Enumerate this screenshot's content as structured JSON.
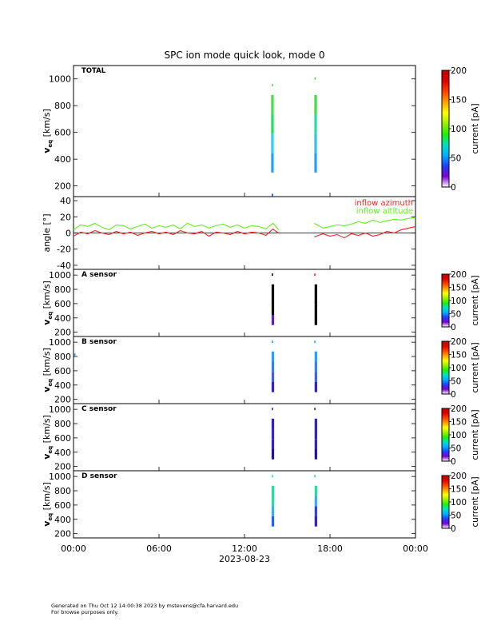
{
  "title": "SPC ion mode quick look, mode 0",
  "footer": {
    "line1": "Generated on Thu Oct 12 14:00:38 2023 by mstevens@cfa.harvard.edu",
    "line2": "For browse purposes only."
  },
  "colors": {
    "azimuth": "#ff2020",
    "altitude": "#66ee22",
    "colorbar": [
      "#ffffff",
      "#7b00d0",
      "#2040ff",
      "#00b0ff",
      "#00e0c0",
      "#20f000",
      "#a0f000",
      "#ffff00",
      "#ffa000",
      "#ff4000",
      "#e00000",
      "#c00000"
    ]
  },
  "chart_data": [
    {
      "type": "heatmap",
      "panel": "TOTAL",
      "panel_label": "TOTAL",
      "ylabel_main": "v",
      "ylabel_sub": "eq",
      "ylabel_unit": "[km/s]",
      "ylim": [
        120,
        1100
      ],
      "yticks": [
        200,
        400,
        600,
        800,
        1000
      ],
      "colorbar_label": "current  [pA]",
      "colorbar_range": [
        0,
        200
      ],
      "colorbar_ticks": [
        0,
        50,
        100,
        150,
        200
      ],
      "strips": [
        {
          "t_start": 13.87,
          "t_end": 14.05,
          "v_min": 300,
          "v_max": 880,
          "colors": [
            "#20a0ff",
            "#30d0f0",
            "#20e060",
            "#40e040"
          ],
          "extra_points": [
            [
              13.97,
              950,
              "#40e040"
            ],
            [
              13.97,
              130,
              "#0040ff"
            ]
          ]
        },
        {
          "t_start": 16.9,
          "t_end": 17.08,
          "v_min": 300,
          "v_max": 880,
          "colors": [
            "#20a0ff",
            "#30c0f0",
            "#20e0a0",
            "#40e040"
          ],
          "extra_points": [
            [
              16.97,
              1000,
              "#40e040"
            ]
          ]
        }
      ]
    },
    {
      "type": "line",
      "panel": "angle",
      "ylabel": "angle [°]",
      "ylim": [
        -45,
        45
      ],
      "yticks": [
        -40,
        -20,
        0,
        20,
        40
      ],
      "series": [
        {
          "name": "inflow azimuth",
          "x": [
            0.0,
            0.5,
            1.0,
            1.5,
            2.0,
            2.5,
            3.0,
            3.5,
            4.0,
            4.5,
            5.0,
            5.5,
            6.0,
            6.5,
            7.0,
            7.5,
            8.0,
            8.5,
            9.0,
            9.5,
            10.0,
            10.5,
            11.0,
            11.5,
            12.0,
            12.5,
            13.0,
            13.5,
            14.0,
            14.2,
            14.4,
            16.9,
            17.2,
            17.5,
            18.0,
            18.5,
            19.0,
            19.5,
            20.0,
            20.5,
            21.0,
            21.5,
            22.0,
            22.5,
            23.0,
            23.5,
            24.0
          ],
          "y": [
            -4,
            1,
            -1,
            3,
            0,
            -2,
            2,
            -1,
            1,
            -3,
            0,
            2,
            -1,
            1,
            -2,
            3,
            0,
            -1,
            2,
            -4,
            1,
            0,
            -2,
            2,
            -1,
            1,
            0,
            -3,
            5,
            2,
            0,
            -5,
            -3,
            -1,
            -4,
            -2,
            -6,
            -1,
            -3,
            0,
            -4,
            -2,
            2,
            0,
            4,
            6,
            8
          ]
        },
        {
          "name": "inflow altitude",
          "x": [
            0.0,
            0.5,
            1.0,
            1.5,
            2.0,
            2.5,
            3.0,
            3.5,
            4.0,
            4.5,
            5.0,
            5.5,
            6.0,
            6.5,
            7.0,
            7.5,
            8.0,
            8.5,
            9.0,
            9.5,
            10.0,
            10.5,
            11.0,
            11.5,
            12.0,
            12.5,
            13.0,
            13.5,
            14.0,
            14.2,
            14.4,
            16.9,
            17.2,
            17.5,
            18.0,
            18.5,
            19.0,
            19.5,
            20.0,
            20.5,
            21.0,
            21.5,
            22.0,
            22.5,
            23.0,
            23.5,
            24.0
          ],
          "y": [
            4,
            10,
            8,
            12,
            7,
            4,
            10,
            9,
            5,
            8,
            11,
            6,
            9,
            7,
            10,
            5,
            12,
            8,
            10,
            6,
            9,
            11,
            7,
            10,
            6,
            9,
            8,
            5,
            12,
            8,
            4,
            12,
            9,
            6,
            8,
            10,
            9,
            11,
            14,
            12,
            16,
            13,
            15,
            17,
            16,
            18,
            19
          ]
        }
      ],
      "legend": [
        "inflow azimuth",
        "inflow altitude"
      ]
    },
    {
      "type": "heatmap",
      "panel": "A sensor",
      "panel_label": "A sensor",
      "ylabel_main": "v",
      "ylabel_sub": "eq",
      "ylabel_unit": "[km/s]",
      "ylim": [
        140,
        1080
      ],
      "yticks": [
        200,
        400,
        600,
        800,
        1000
      ],
      "colorbar_label": "current  [pA]",
      "colorbar_range": [
        0,
        200
      ],
      "colorbar_ticks": [
        0,
        50,
        100,
        150,
        200
      ],
      "strips": [
        {
          "t_start": 13.9,
          "t_end": 14.08,
          "v_min": 300,
          "v_max": 870,
          "colors": [
            "#6020b0",
            "#000000",
            "#000000",
            "#000000"
          ],
          "extra_points": [
            [
              13.97,
              1000,
              "#000000"
            ]
          ]
        },
        {
          "t_start": 16.92,
          "t_end": 17.1,
          "v_min": 300,
          "v_max": 870,
          "colors": [
            "#000000",
            "#000000",
            "#000000",
            "#000000"
          ],
          "extra_points": [
            [
              16.95,
              1000,
              "#ff2020"
            ]
          ]
        }
      ]
    },
    {
      "type": "heatmap",
      "panel": "B sensor",
      "panel_label": "B sensor",
      "ylabel_main": "v",
      "ylabel_sub": "eq",
      "ylabel_unit": "[km/s]",
      "ylim": [
        140,
        1080
      ],
      "yticks": [
        200,
        400,
        600,
        800,
        1000
      ],
      "colorbar_label": "current  [pA]",
      "colorbar_range": [
        0,
        200
      ],
      "colorbar_ticks": [
        0,
        50,
        100,
        150,
        200
      ],
      "strips": [
        {
          "t_start": 13.9,
          "t_end": 14.08,
          "v_min": 300,
          "v_max": 870,
          "colors": [
            "#3020c0",
            "#4060e0",
            "#3080f0",
            "#20a0ff"
          ],
          "extra_points": [
            [
              13.97,
              1000,
              "#20a0ff"
            ],
            [
              0.1,
              820,
              "#20a0ff"
            ]
          ]
        },
        {
          "t_start": 16.92,
          "t_end": 17.1,
          "v_min": 300,
          "v_max": 870,
          "colors": [
            "#3020c0",
            "#4060e0",
            "#3080f0",
            "#20a0ff"
          ],
          "extra_points": [
            [
              16.95,
              1000,
              "#20a0ff"
            ]
          ]
        }
      ]
    },
    {
      "type": "heatmap",
      "panel": "C sensor",
      "panel_label": "C sensor",
      "ylabel_main": "v",
      "ylabel_sub": "eq",
      "ylabel_unit": "[km/s]",
      "ylim": [
        140,
        1080
      ],
      "yticks": [
        200,
        400,
        600,
        800,
        1000
      ],
      "colorbar_label": "current  [pA]",
      "colorbar_range": [
        0,
        200
      ],
      "colorbar_ticks": [
        0,
        50,
        100,
        150,
        200
      ],
      "strips": [
        {
          "t_start": 13.9,
          "t_end": 14.08,
          "v_min": 300,
          "v_max": 870,
          "colors": [
            "#2010a0",
            "#3020c0",
            "#4020d0",
            "#3020c0"
          ],
          "extra_points": [
            [
              13.97,
              1000,
              "#3020c0"
            ]
          ]
        },
        {
          "t_start": 16.92,
          "t_end": 17.1,
          "v_min": 300,
          "v_max": 870,
          "colors": [
            "#2010a0",
            "#3020c0",
            "#3020c0",
            "#3020c0"
          ],
          "extra_points": [
            [
              16.95,
              1000,
              "#3020c0"
            ]
          ]
        }
      ]
    },
    {
      "type": "heatmap",
      "panel": "D sensor",
      "panel_label": "D sensor",
      "ylabel_main": "v",
      "ylabel_sub": "eq",
      "ylabel_unit": "[km/s]",
      "ylim": [
        140,
        1080
      ],
      "yticks": [
        200,
        400,
        600,
        800,
        1000
      ],
      "colorbar_label": "current  [pA]",
      "colorbar_range": [
        0,
        200
      ],
      "colorbar_ticks": [
        0,
        50,
        100,
        150,
        200
      ],
      "strips": [
        {
          "t_start": 13.9,
          "t_end": 14.08,
          "v_min": 300,
          "v_max": 870,
          "colors": [
            "#2060ff",
            "#30b0f0",
            "#20e0a0",
            "#20e0a0"
          ],
          "extra_points": [
            [
              13.97,
              1000,
              "#20e0a0"
            ]
          ]
        },
        {
          "t_start": 16.92,
          "t_end": 17.1,
          "v_min": 300,
          "v_max": 870,
          "colors": [
            "#3020c0",
            "#3040e0",
            "#30b0f0",
            "#20e0a0"
          ],
          "extra_points": [
            [
              16.95,
              1000,
              "#20e0a0"
            ]
          ]
        }
      ]
    }
  ],
  "x_axis": {
    "ticks": [
      0,
      6,
      12,
      18,
      24
    ],
    "tick_labels": [
      "00:00",
      "06:00",
      "12:00",
      "18:00",
      "00:00"
    ],
    "date_label": "2023-08-23",
    "xlim": [
      0,
      24
    ]
  }
}
